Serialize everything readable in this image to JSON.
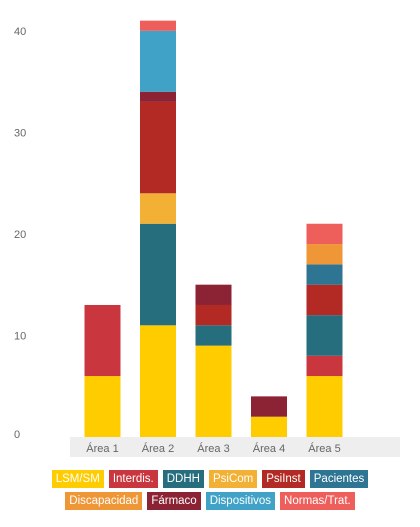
{
  "chart_data": {
    "type": "bar",
    "stacked": true,
    "categories": [
      "Área 1",
      "Área 2",
      "Área 3",
      "Área 4",
      "Área 5"
    ],
    "ylim": [
      0,
      42
    ],
    "yticks": [
      0,
      10,
      20,
      30,
      40
    ],
    "grid": false,
    "legend_position": "bottom",
    "series": [
      {
        "name": "LSM/SM",
        "color": "#FFCC00",
        "values": [
          6,
          11,
          9,
          2,
          6
        ]
      },
      {
        "name": "Interdis.",
        "color": "#C9363E",
        "values": [
          7,
          0,
          0,
          0,
          2
        ]
      },
      {
        "name": "DDHH",
        "color": "#266D7E",
        "values": [
          0,
          10,
          2,
          0,
          4
        ]
      },
      {
        "name": "PsiCom",
        "color": "#F2B134",
        "values": [
          0,
          3,
          0,
          0,
          0
        ]
      },
      {
        "name": "PsiInst",
        "color": "#B22A23",
        "values": [
          0,
          9,
          2,
          0,
          3
        ]
      },
      {
        "name": "Pacientes",
        "color": "#2E7594",
        "values": [
          0,
          0,
          0,
          0,
          2
        ]
      },
      {
        "name": "Discapacidad",
        "color": "#EF9637",
        "values": [
          0,
          0,
          0,
          0,
          2
        ]
      },
      {
        "name": "Fármaco",
        "color": "#8C2334",
        "values": [
          0,
          1,
          2,
          2,
          0
        ]
      },
      {
        "name": "Dispositivos",
        "color": "#3FA2C6",
        "values": [
          0,
          6,
          0,
          0,
          0
        ]
      },
      {
        "name": "Normas/Trat.",
        "color": "#EE5E5A",
        "values": [
          0,
          1,
          0,
          0,
          2
        ]
      }
    ]
  }
}
